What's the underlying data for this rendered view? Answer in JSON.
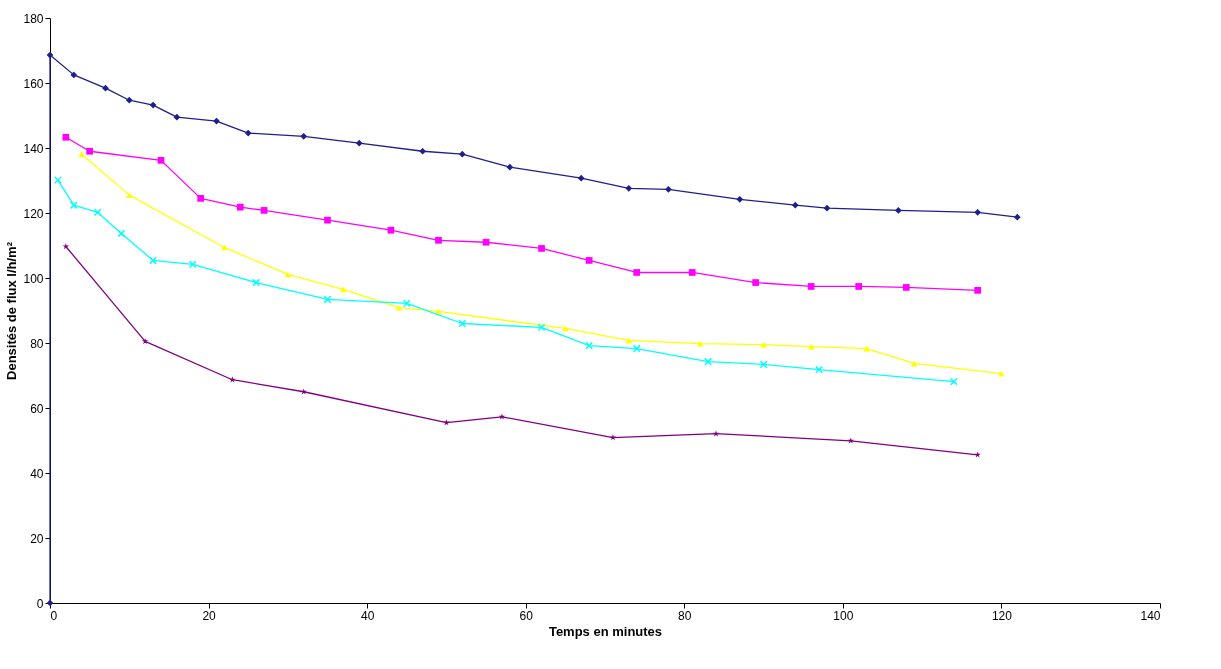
{
  "chart_data": {
    "type": "line",
    "xlabel": "Temps en minutes",
    "ylabel": "Densités de flux l/h/m²",
    "xlim": [
      0,
      140
    ],
    "ylim": [
      0,
      180
    ],
    "xticks": [
      0,
      20,
      40,
      60,
      80,
      100,
      120,
      140
    ],
    "yticks": [
      0,
      20,
      40,
      60,
      80,
      100,
      120,
      140,
      160,
      180
    ],
    "grid": false,
    "legend": false,
    "line_style": "solid",
    "series": [
      {
        "color": "#1f1f8c",
        "marker": "diamond",
        "x": [
          0,
          0,
          3,
          7,
          10,
          13,
          16,
          21,
          25,
          32,
          39,
          47,
          52,
          58,
          67,
          73,
          78,
          87,
          94,
          98,
          107,
          117,
          122
        ],
        "values": [
          0,
          168.6,
          162.5,
          158.4,
          154.7,
          153.2,
          149.5,
          148.3,
          144.6,
          143.6,
          141.5,
          139.0,
          138.1,
          134.1,
          130.7,
          127.6,
          127.3,
          124.2,
          122.4,
          121.5,
          120.8,
          120.2,
          118.7
        ]
      },
      {
        "color": "#ff00ff",
        "marker": "square",
        "x": [
          2,
          5,
          14,
          19,
          24,
          27,
          35,
          43,
          49,
          55,
          62,
          68,
          74,
          81,
          89,
          96,
          102,
          108,
          117
        ],
        "values": [
          143.3,
          139.0,
          136.2,
          124.5,
          121.8,
          120.8,
          117.8,
          114.7,
          111.6,
          111.0,
          109.1,
          105.4,
          101.7,
          101.7,
          98.6,
          97.4,
          97.4,
          97.1,
          96.2
        ]
      },
      {
        "color": "#ffff00",
        "marker": "triangle",
        "x": [
          4,
          10,
          22,
          30,
          37,
          44,
          49,
          65,
          73,
          82,
          90,
          96,
          103,
          109,
          120
        ],
        "values": [
          138.1,
          125.5,
          109.4,
          101.1,
          96.5,
          90.9,
          89.7,
          84.5,
          80.8,
          79.8,
          79.5,
          78.9,
          78.3,
          73.7,
          70.6
        ]
      },
      {
        "color": "#00ffff",
        "marker": "cross",
        "x": [
          1,
          3,
          6,
          9,
          13,
          18,
          26,
          35,
          45,
          52,
          62,
          68,
          74,
          83,
          90,
          97,
          114
        ],
        "values": [
          130.1,
          122.4,
          120.2,
          113.7,
          105.4,
          104.2,
          98.6,
          93.4,
          92.2,
          86.0,
          84.8,
          79.2,
          78.3,
          74.3,
          73.4,
          71.8,
          68.1
        ]
      },
      {
        "color": "#800080",
        "marker": "star",
        "x": [
          2,
          12,
          23,
          32,
          50,
          57,
          71,
          84,
          101,
          117
        ],
        "values": [
          109.7,
          80.5,
          68.7,
          65.0,
          55.5,
          57.3,
          50.9,
          52.1,
          49.9,
          45.6
        ]
      }
    ]
  }
}
